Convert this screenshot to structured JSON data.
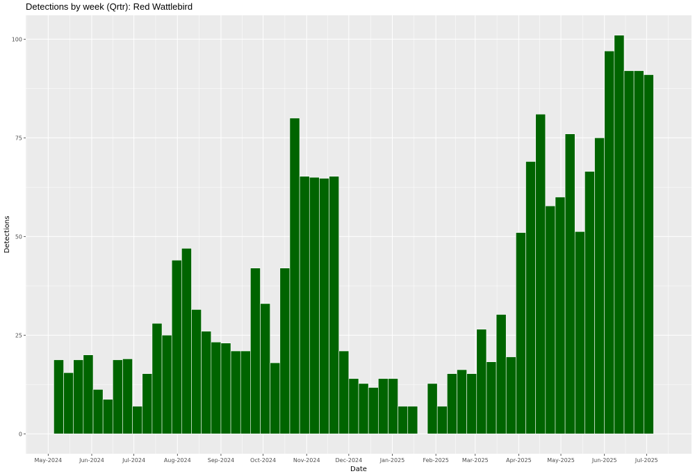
{
  "chart_data": {
    "type": "bar",
    "title": "Detections by week (Qrtr): Red Wattlebird",
    "xlabel": "Date",
    "ylabel": "Detections",
    "ylim": [
      -5.05,
      106.05
    ],
    "xlim": [
      "2024-04-15",
      "2025-08-02"
    ],
    "yticks": [
      0,
      25,
      50,
      75,
      100
    ],
    "xticks": [
      {
        "date": "2024-05-01",
        "label": "May-2024"
      },
      {
        "date": "2024-06-01",
        "label": "Jun-2024"
      },
      {
        "date": "2024-07-01",
        "label": "Jul-2024"
      },
      {
        "date": "2024-08-01",
        "label": "Aug-2024"
      },
      {
        "date": "2024-09-01",
        "label": "Sep-2024"
      },
      {
        "date": "2024-10-01",
        "label": "Oct-2024"
      },
      {
        "date": "2024-11-01",
        "label": "Nov-2024"
      },
      {
        "date": "2024-12-01",
        "label": "Dec-2024"
      },
      {
        "date": "2025-01-01",
        "label": "Jan-2025"
      },
      {
        "date": "2025-02-01",
        "label": "Feb-2025"
      },
      {
        "date": "2025-03-01",
        "label": "Mar-2025"
      },
      {
        "date": "2025-04-01",
        "label": "Apr-2025"
      },
      {
        "date": "2025-05-01",
        "label": "May-2025"
      },
      {
        "date": "2025-06-01",
        "label": "Jun-2025"
      },
      {
        "date": "2025-07-01",
        "label": "Jul-2025"
      }
    ],
    "grid": true,
    "bar_color": "#006400",
    "panel_color": "#ebebeb",
    "week_starts": [
      "2024-05-05",
      "2024-05-12",
      "2024-05-19",
      "2024-05-26",
      "2024-06-02",
      "2024-06-09",
      "2024-06-16",
      "2024-06-23",
      "2024-06-30",
      "2024-07-07",
      "2024-07-14",
      "2024-07-21",
      "2024-07-28",
      "2024-08-04",
      "2024-08-11",
      "2024-08-18",
      "2024-08-25",
      "2024-09-01",
      "2024-09-08",
      "2024-09-15",
      "2024-09-22",
      "2024-09-29",
      "2024-10-06",
      "2024-10-13",
      "2024-10-20",
      "2024-10-27",
      "2024-11-03",
      "2024-11-10",
      "2024-11-17",
      "2024-11-24",
      "2024-12-01",
      "2024-12-08",
      "2024-12-15",
      "2024-12-22",
      "2024-12-29",
      "2025-01-05",
      "2025-01-12",
      "2025-01-19",
      "2025-01-26",
      "2025-02-02",
      "2025-02-09",
      "2025-02-16",
      "2025-02-23",
      "2025-03-02",
      "2025-03-09",
      "2025-03-16",
      "2025-03-23",
      "2025-03-30",
      "2025-04-06",
      "2025-04-13",
      "2025-04-20",
      "2025-04-27",
      "2025-05-04",
      "2025-05-11",
      "2025-05-18",
      "2025-05-25",
      "2025-06-01",
      "2025-06-08",
      "2025-06-15",
      "2025-06-22",
      "2025-06-29"
    ],
    "values": [
      18.75,
      15.5,
      18.75,
      20,
      11.25,
      8.75,
      18.75,
      19,
      7,
      15.25,
      28,
      25,
      44,
      47,
      31.5,
      26,
      23.25,
      23,
      21,
      21,
      42,
      33,
      18,
      42,
      80,
      65.25,
      65,
      64.75,
      65.25,
      21,
      14,
      12.75,
      11.75,
      14,
      14,
      7,
      7,
      null,
      12.75,
      7,
      15.25,
      16.25,
      15.25,
      26.5,
      18.25,
      30.25,
      19.5,
      51,
      69,
      81,
      57.75,
      60,
      76,
      51.25,
      66.5,
      75,
      97,
      101,
      92,
      92,
      91
    ]
  }
}
